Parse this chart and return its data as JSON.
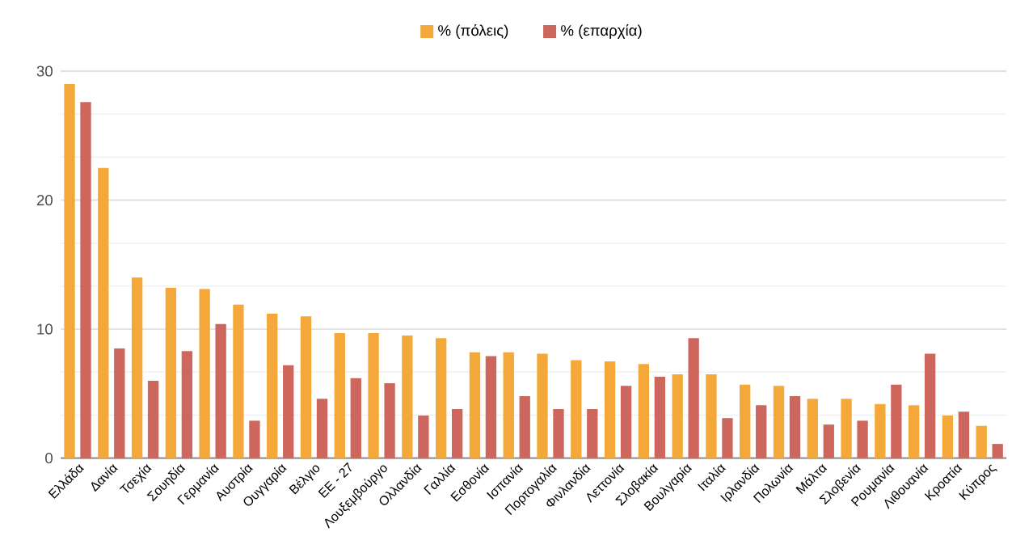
{
  "chart_data": {
    "type": "bar",
    "categories": [
      "Ελλάδα",
      "Δανία",
      "Τσεχία",
      "Σουηδία",
      "Γερμανία",
      "Αυστρία",
      "Ουγγαρία",
      "Βέλγιο",
      "ΕΕ - 27",
      "Λουξεμβούργο",
      "Ολλανδία",
      "Γαλλία",
      "Εσθονία",
      "Ισπανία",
      "Πορτογαλία",
      "Φινλανδία",
      "Λεττονία",
      "Σλοβακία",
      "Βουλγαρία",
      "Ιταλία",
      "Ιρλανδία",
      "Πολωνία",
      "Μάλτα",
      "Σλοβενία",
      "Ρουμανία",
      "Λιθουανία",
      "Κροατία",
      "Κύπρος"
    ],
    "series": [
      {
        "name": "% (πόλεις)",
        "color": "#f4a83a",
        "values": [
          29.0,
          22.5,
          14.0,
          13.2,
          13.1,
          11.9,
          11.2,
          11.0,
          9.7,
          9.7,
          9.5,
          9.3,
          8.2,
          8.2,
          8.1,
          7.6,
          7.5,
          7.3,
          6.5,
          6.5,
          5.7,
          5.6,
          4.6,
          4.6,
          4.2,
          4.1,
          3.3,
          2.5
        ]
      },
      {
        "name": "% (επαρχία)",
        "color": "#cd665c",
        "values": [
          27.6,
          8.5,
          6.0,
          8.3,
          10.4,
          2.9,
          7.2,
          4.6,
          6.2,
          5.8,
          3.3,
          3.8,
          7.9,
          4.8,
          3.8,
          3.8,
          5.6,
          6.3,
          9.3,
          3.1,
          4.1,
          4.8,
          2.6,
          2.9,
          5.7,
          8.1,
          3.6,
          1.1
        ]
      }
    ],
    "ylim": [
      0,
      30
    ],
    "yticks": [
      0,
      10,
      20,
      30
    ],
    "grid": "y",
    "legend": "top"
  }
}
